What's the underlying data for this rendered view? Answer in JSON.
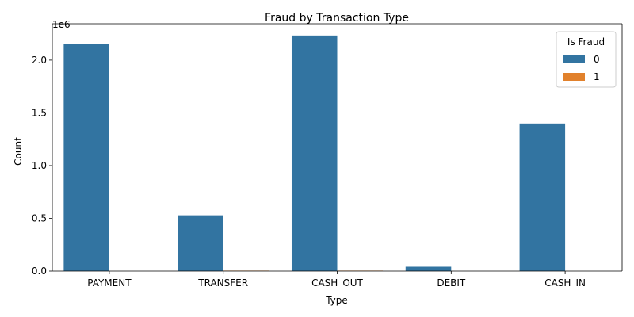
{
  "chart_data": {
    "type": "bar",
    "title": "Fraud by Transaction Type",
    "xlabel": "Type",
    "ylabel": "Count",
    "y_offset_label": "1e6",
    "categories": [
      "PAYMENT",
      "TRANSFER",
      "CASH_OUT",
      "DEBIT",
      "CASH_IN"
    ],
    "series": [
      {
        "name": "0",
        "color": "#3274a1",
        "values": [
          2151495,
          528812,
          2233384,
          41432,
          1399284
        ]
      },
      {
        "name": "1",
        "color": "#e1812c",
        "values": [
          0,
          4097,
          4116,
          0,
          0
        ]
      }
    ],
    "y_ticks": [
      0,
      500000,
      1000000,
      1500000,
      2000000
    ],
    "y_tick_labels": [
      "0.0",
      "0.5",
      "1.0",
      "1.5",
      "2.0"
    ],
    "ylim": [
      0,
      2345053
    ],
    "grid": false,
    "legend": {
      "title": "Is Fraud",
      "placement": "top-right"
    }
  }
}
